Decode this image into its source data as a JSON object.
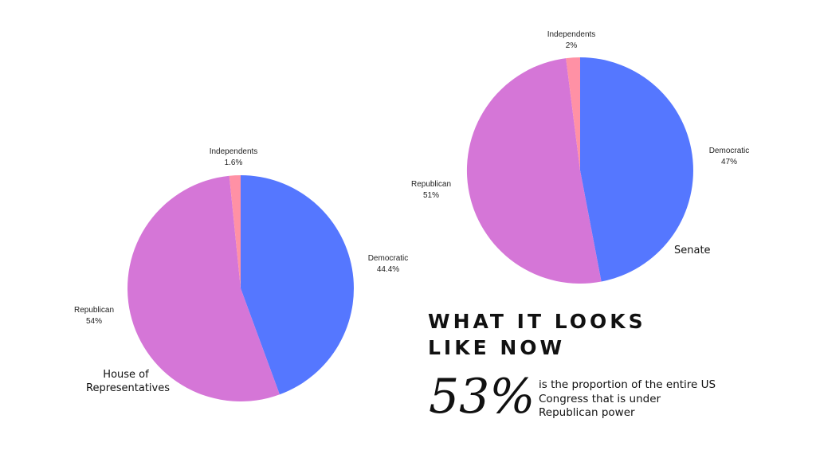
{
  "chart_data": [
    {
      "type": "pie",
      "caption": "House of Representatives",
      "slices": [
        {
          "label": "Democratic",
          "value": 44.4,
          "display": "44.4%",
          "color": "#5577ff"
        },
        {
          "label": "Republican",
          "value": 54,
          "display": "54%",
          "color": "#d576d7"
        },
        {
          "label": "Independents",
          "value": 1.6,
          "display": "1.6%",
          "color": "#ff91a5"
        }
      ]
    },
    {
      "type": "pie",
      "caption": "Senate",
      "slices": [
        {
          "label": "Democratic",
          "value": 47,
          "display": "47%",
          "color": "#5577ff"
        },
        {
          "label": "Republican",
          "value": 51,
          "display": "51%",
          "color": "#d576d7"
        },
        {
          "label": "Independents",
          "value": 2,
          "display": "2%",
          "color": "#ff91a5"
        }
      ]
    }
  ],
  "house": {
    "caption": "House of\nRepresentatives"
  },
  "senate": {
    "caption": "Senate"
  },
  "headline": "WHAT IT LOOKS LIKE NOW",
  "stat": {
    "value": "53%",
    "description": "is the proportion of the entire US Congress that is under Republican power"
  }
}
